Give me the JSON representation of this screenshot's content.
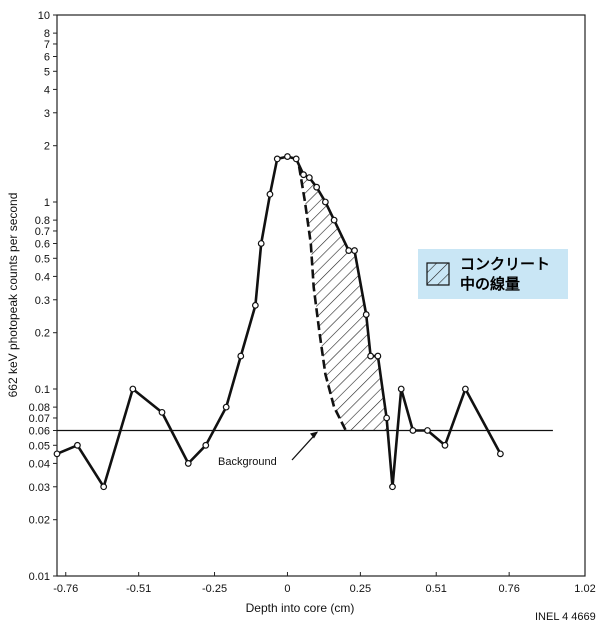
{
  "chart_data": {
    "type": "line",
    "xlabel": "Depth into core (cm)",
    "ylabel": "662 keV photopeak counts per second",
    "xlim": [
      -0.79,
      1.02
    ],
    "ylim": [
      0.01,
      10
    ],
    "yscale": "log",
    "grid": false,
    "x_ticks": [
      {
        "value": -0.76,
        "label": "-0.76"
      },
      {
        "value": -0.51,
        "label": "-0.51"
      },
      {
        "value": -0.25,
        "label": "-0.25"
      },
      {
        "value": 0,
        "label": "0"
      },
      {
        "value": 0.25,
        "label": "0.25"
      },
      {
        "value": 0.51,
        "label": "0.51"
      },
      {
        "value": 0.76,
        "label": "0.76"
      },
      {
        "value": 1.02,
        "label": "1.02"
      }
    ],
    "y_ticks": [
      {
        "value": 0.01,
        "label": "0.01"
      },
      {
        "value": 0.02,
        "label": "0.02"
      },
      {
        "value": 0.03,
        "label": "0.03"
      },
      {
        "value": 0.04,
        "label": "0.04"
      },
      {
        "value": 0.05,
        "label": "0.05"
      },
      {
        "value": 0.06,
        "label": "0.06"
      },
      {
        "value": 0.07,
        "label": "0.07"
      },
      {
        "value": 0.08,
        "label": "0.08"
      },
      {
        "value": 0.1,
        "label": "0.1"
      },
      {
        "value": 0.2,
        "label": "0.2"
      },
      {
        "value": 0.3,
        "label": "0.3"
      },
      {
        "value": 0.4,
        "label": "0.4"
      },
      {
        "value": 0.5,
        "label": "0.5"
      },
      {
        "value": 0.6,
        "label": "0.6"
      },
      {
        "value": 0.7,
        "label": "0.7"
      },
      {
        "value": 0.8,
        "label": "0.8"
      },
      {
        "value": 1,
        "label": "1"
      },
      {
        "value": 2,
        "label": "2"
      },
      {
        "value": 3,
        "label": "3"
      },
      {
        "value": 4,
        "label": "4"
      },
      {
        "value": 5,
        "label": "5"
      },
      {
        "value": 6,
        "label": "6"
      },
      {
        "value": 7,
        "label": "7"
      },
      {
        "value": 8,
        "label": "8"
      },
      {
        "value": 10,
        "label": "10"
      }
    ],
    "series": [
      {
        "points": [
          [
            -0.79,
            0.045
          ],
          [
            -0.72,
            0.05
          ],
          [
            -0.63,
            0.03
          ],
          [
            -0.53,
            0.1
          ],
          [
            -0.43,
            0.075
          ],
          [
            -0.34,
            0.04
          ],
          [
            -0.28,
            0.05
          ],
          [
            -0.21,
            0.08
          ],
          [
            -0.16,
            0.15
          ],
          [
            -0.11,
            0.28
          ],
          [
            -0.09,
            0.6
          ],
          [
            -0.06,
            1.1
          ],
          [
            -0.035,
            1.7
          ],
          [
            0,
            1.75
          ],
          [
            0.03,
            1.7
          ],
          [
            0.055,
            1.4
          ],
          [
            0.075,
            1.35
          ],
          [
            0.1,
            1.2
          ],
          [
            0.13,
            1.0
          ],
          [
            0.16,
            0.8
          ],
          [
            0.21,
            0.55
          ],
          [
            0.23,
            0.55
          ],
          [
            0.27,
            0.25
          ],
          [
            0.285,
            0.15
          ],
          [
            0.31,
            0.15
          ],
          [
            0.34,
            0.07
          ],
          [
            0.36,
            0.03
          ],
          [
            0.39,
            0.1
          ],
          [
            0.43,
            0.06
          ],
          [
            0.48,
            0.06
          ],
          [
            0.54,
            0.05
          ],
          [
            0.61,
            0.1
          ],
          [
            0.73,
            0.045
          ]
        ]
      }
    ],
    "reference_lines": [
      {
        "label": "Background",
        "y": 0.06,
        "x_range": [
          -0.79,
          0.91
        ]
      }
    ],
    "shaded_region": {
      "upper": [
        [
          0.03,
          1.7
        ],
        [
          0.055,
          1.4
        ],
        [
          0.075,
          1.35
        ],
        [
          0.1,
          1.2
        ],
        [
          0.13,
          1.0
        ],
        [
          0.16,
          0.8
        ],
        [
          0.21,
          0.55
        ],
        [
          0.23,
          0.55
        ],
        [
          0.27,
          0.25
        ],
        [
          0.285,
          0.15
        ],
        [
          0.31,
          0.15
        ],
        [
          0.34,
          0.07
        ],
        [
          0.345,
          0.06
        ]
      ],
      "lower": [
        [
          0.04,
          1.55
        ],
        [
          0.06,
          1.0
        ],
        [
          0.08,
          0.6
        ],
        [
          0.09,
          0.35
        ],
        [
          0.11,
          0.2
        ],
        [
          0.13,
          0.12
        ],
        [
          0.16,
          0.08
        ],
        [
          0.2,
          0.06
        ]
      ]
    },
    "legend": {
      "label": "コンクリート\n中の線量",
      "position": "right",
      "background": "#c9e6f5"
    },
    "annotations": [
      {
        "text": "INEL 4 4669",
        "position": "bottom-right"
      }
    ]
  }
}
